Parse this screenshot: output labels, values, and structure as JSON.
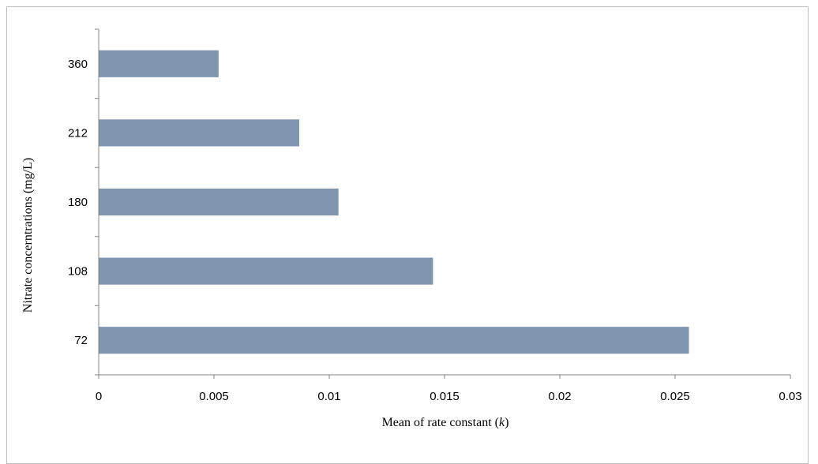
{
  "chart_data": {
    "type": "bar",
    "orientation": "horizontal",
    "categories": [
      "72",
      "108",
      "180",
      "212",
      "360"
    ],
    "values": [
      0.0256,
      0.0145,
      0.0104,
      0.0087,
      0.0052
    ],
    "xlabel_main": "Mean of rate constant",
    "xlabel_var": "k",
    "ylabel": "Nitrate concerntrations  (mg/L)",
    "xlim": [
      0,
      0.03
    ],
    "xticks": [
      "0",
      "0.005",
      "0.01",
      "0.015",
      "0.02",
      "0.025",
      "0.03"
    ],
    "grid": false,
    "legend": "none",
    "bar_color": "#8096b0",
    "axis_color": "#868686"
  }
}
